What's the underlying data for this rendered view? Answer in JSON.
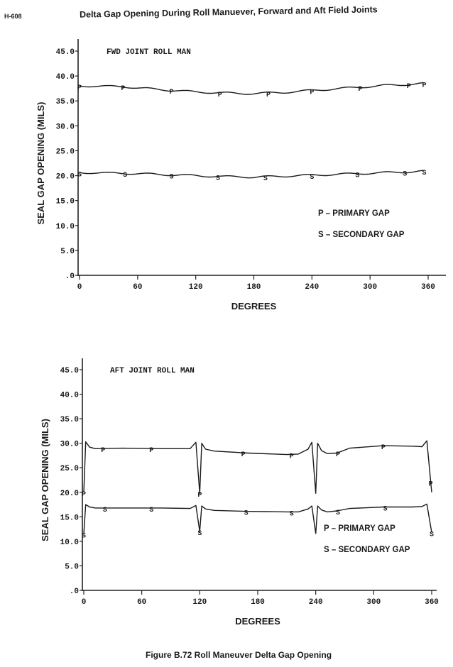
{
  "page": {
    "page_id": "H-608",
    "title": "Delta Gap Opening During Roll Manuever, Forward and Aft Field Joints",
    "caption": "Figure B.72  Roll Maneuver Delta Gap Opening"
  },
  "chart_data": [
    {
      "type": "line",
      "title": "FWD JOINT ROLL MAN",
      "xlabel": "DEGREES",
      "ylabel": "SEAL GAP OPENING (MILS)",
      "xlim": [
        0,
        360
      ],
      "ylim": [
        0,
        45
      ],
      "x_ticks": [
        "0",
        "60",
        "120",
        "180",
        "240",
        "300",
        "360"
      ],
      "y_ticks": [
        ".0",
        "5.0",
        "10.0",
        "15.0",
        "20.0",
        "25.0",
        "30.0",
        "35.0",
        "40.0",
        "45.0"
      ],
      "legend": [
        "P – PRIMARY GAP",
        "S – SECONDARY GAP"
      ],
      "legend_position": "right-middle",
      "series": [
        {
          "name": "PRIMARY GAP",
          "marker": "P",
          "x": [
            0,
            15,
            30,
            45,
            60,
            75,
            90,
            105,
            120,
            135,
            150,
            165,
            180,
            195,
            210,
            225,
            240,
            255,
            270,
            285,
            300,
            315,
            330,
            345,
            355
          ],
          "y": [
            38.0,
            38.0,
            37.9,
            37.9,
            37.6,
            37.4,
            37.2,
            37.0,
            36.8,
            36.7,
            36.6,
            36.5,
            36.5,
            36.6,
            36.7,
            36.9,
            37.1,
            37.3,
            37.5,
            37.7,
            37.9,
            38.1,
            38.2,
            38.4,
            38.5
          ],
          "marker_x": [
            0,
            45,
            95,
            145,
            195,
            240,
            290,
            340,
            356
          ]
        },
        {
          "name": "SECONDARY GAP",
          "marker": "S",
          "x": [
            0,
            15,
            30,
            45,
            60,
            75,
            90,
            105,
            120,
            135,
            150,
            165,
            180,
            195,
            210,
            225,
            240,
            255,
            270,
            285,
            300,
            315,
            330,
            345,
            355
          ],
          "y": [
            20.6,
            20.6,
            20.5,
            20.5,
            20.4,
            20.3,
            20.2,
            20.1,
            20.0,
            19.9,
            19.8,
            19.8,
            19.7,
            19.8,
            19.9,
            20.0,
            20.1,
            20.2,
            20.3,
            20.4,
            20.5,
            20.6,
            20.7,
            20.8,
            20.9
          ],
          "marker_x": [
            0,
            47,
            95,
            143,
            192,
            240,
            287,
            336,
            356
          ]
        }
      ]
    },
    {
      "type": "line",
      "title": "AFT JOINT  ROLL MAN",
      "xlabel": "DEGREES",
      "ylabel": "SEAL GAP OPENING (MILS)",
      "xlim": [
        0,
        360
      ],
      "ylim": [
        0,
        45
      ],
      "x_ticks": [
        "0",
        "60",
        "120",
        "180",
        "240",
        "300",
        "360"
      ],
      "y_ticks": [
        ".0",
        "5.0",
        "10.0",
        "15.0",
        "20.0",
        "25.0",
        "30.0",
        "35.0",
        "40.0",
        "45.0"
      ],
      "legend": [
        "P – PRIMARY GAP",
        "S – SECONDARY GAP"
      ],
      "legend_position": "right-middle",
      "series": [
        {
          "name": "PRIMARY GAP",
          "marker": "P",
          "x": [
            0,
            2,
            6,
            12,
            40,
            80,
            110,
            116,
            120,
            122,
            126,
            135,
            170,
            210,
            222,
            232,
            236,
            240,
            242,
            246,
            252,
            262,
            275,
            310,
            340,
            350,
            355,
            360
          ],
          "y": [
            20.0,
            30.3,
            29.2,
            28.9,
            29.0,
            28.9,
            28.9,
            30.2,
            19.8,
            30.0,
            28.8,
            28.4,
            28.0,
            27.7,
            27.8,
            28.8,
            30.2,
            19.8,
            30.0,
            28.5,
            27.9,
            28.0,
            29.0,
            29.5,
            29.4,
            29.3,
            30.5,
            20.0
          ],
          "marker_x": [
            0,
            20,
            70,
            120,
            165,
            215,
            263,
            310,
            359
          ]
        },
        {
          "name": "SECONDARY GAP",
          "marker": "S",
          "x": [
            0,
            2,
            6,
            12,
            40,
            80,
            110,
            116,
            120,
            122,
            126,
            135,
            170,
            210,
            222,
            232,
            236,
            240,
            242,
            246,
            252,
            262,
            275,
            310,
            340,
            350,
            355,
            360
          ],
          "y": [
            11.5,
            17.5,
            17.0,
            16.8,
            16.8,
            16.8,
            16.7,
            17.3,
            12.0,
            17.2,
            16.6,
            16.3,
            16.1,
            16.0,
            16.0,
            16.6,
            17.2,
            11.6,
            17.2,
            16.4,
            16.0,
            16.2,
            16.7,
            17.0,
            17.0,
            17.1,
            17.6,
            11.8
          ],
          "marker_x": [
            0,
            22,
            70,
            120,
            168,
            215,
            263,
            312,
            360
          ]
        }
      ]
    }
  ]
}
